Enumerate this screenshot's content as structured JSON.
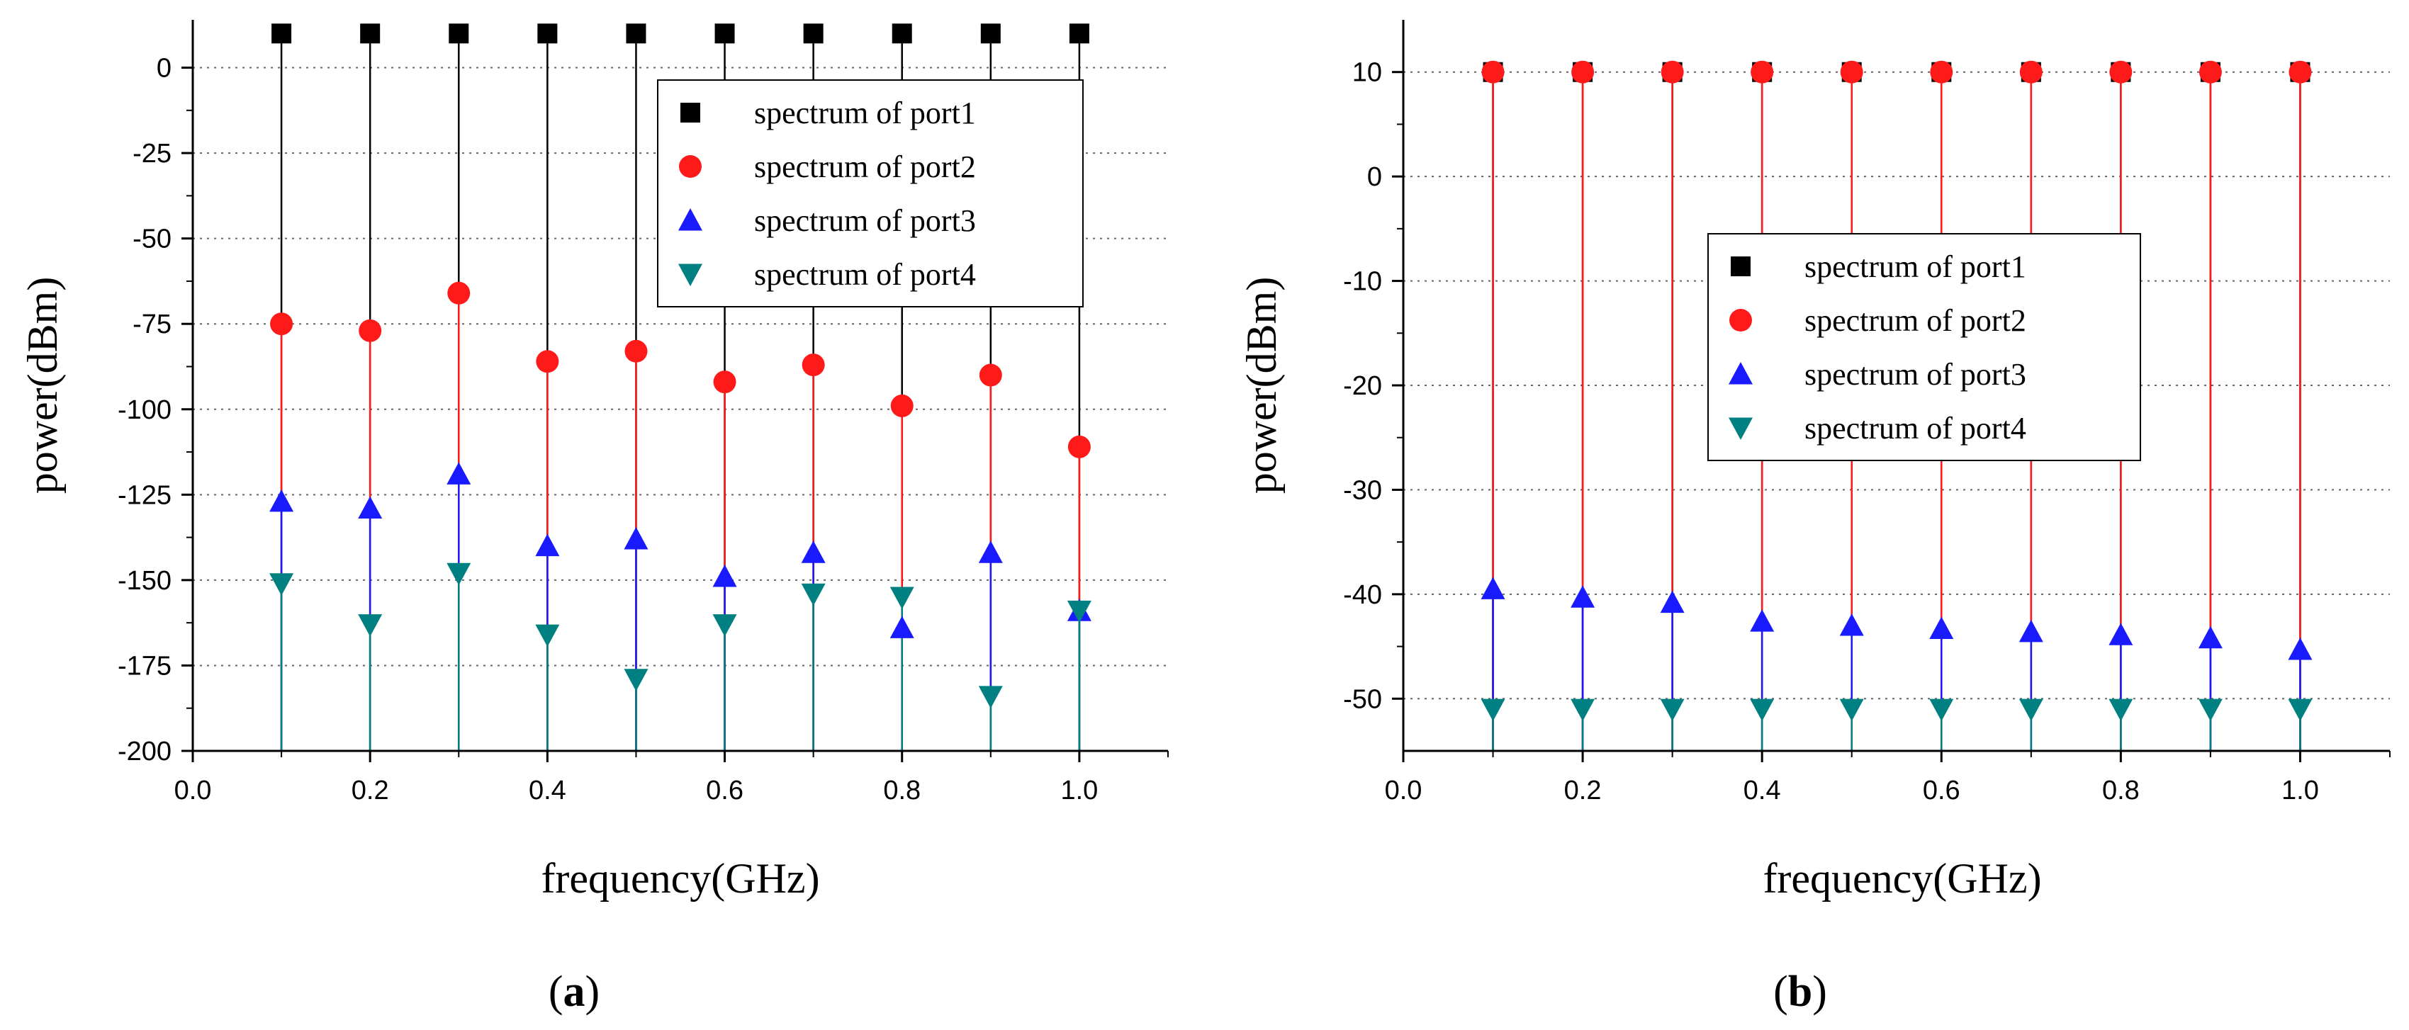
{
  "chart_data": [
    {
      "type": "scatter",
      "style": "stem",
      "caption": "a",
      "xlabel": "frequency(GHz)",
      "ylabel": "power(dBm)",
      "xlim": [
        0.0,
        1.1
      ],
      "ylim": [
        -200,
        14
      ],
      "xticks": [
        0.0,
        0.2,
        0.4,
        0.6,
        0.8,
        1.0
      ],
      "xtick_labels": [
        "0.0",
        "0.2",
        "0.4",
        "0.6",
        "0.8",
        "1.0"
      ],
      "yticks": [
        0,
        -25,
        -50,
        -75,
        -100,
        -125,
        -150,
        -175,
        -200
      ],
      "ytick_labels": [
        "0",
        "-25",
        "-50",
        "-75",
        "-100",
        "-125",
        "-150",
        "-175",
        "-200"
      ],
      "grid": "horizontal dotted",
      "legend_position": "top-right",
      "x": [
        0.1,
        0.2,
        0.3,
        0.4,
        0.5,
        0.6,
        0.7,
        0.8,
        0.9,
        1.0
      ],
      "series": [
        {
          "name": "spectrum of port1",
          "marker": "square",
          "color": "#000000",
          "values": [
            10,
            10,
            10,
            10,
            10,
            10,
            10,
            10,
            10,
            10
          ]
        },
        {
          "name": "spectrum of port2",
          "marker": "circle",
          "color": "#ff1a1a",
          "values": [
            -75,
            -77,
            -66,
            -86,
            -83,
            -92,
            -87,
            -99,
            -90,
            -111
          ]
        },
        {
          "name": "spectrum of port3",
          "marker": "triangle-up",
          "color": "#1a1aff",
          "values": [
            -127,
            -129,
            -119,
            -140,
            -138,
            -149,
            -142,
            -164,
            -142,
            -159
          ]
        },
        {
          "name": "spectrum of port4",
          "marker": "triangle-down",
          "color": "#008080",
          "values": [
            -151,
            -163,
            -148,
            -166,
            -179,
            -163,
            -154,
            -155,
            -184,
            -159
          ]
        }
      ]
    },
    {
      "type": "scatter",
      "style": "stem",
      "caption": "b",
      "xlabel": "frequency(GHz)",
      "ylabel": "power(dBm)",
      "xlim": [
        0.0,
        1.1
      ],
      "ylim": [
        -55,
        15
      ],
      "xticks": [
        0.0,
        0.2,
        0.4,
        0.6,
        0.8,
        1.0
      ],
      "xtick_labels": [
        "0.0",
        "0.2",
        "0.4",
        "0.6",
        "0.8",
        "1.0"
      ],
      "yticks": [
        10,
        0,
        -10,
        -20,
        -30,
        -40,
        -50
      ],
      "ytick_labels": [
        "10",
        "0",
        "-10",
        "-20",
        "-30",
        "-40",
        "-50"
      ],
      "grid": "horizontal dotted",
      "legend_position": "center",
      "x": [
        0.1,
        0.2,
        0.3,
        0.4,
        0.5,
        0.6,
        0.7,
        0.8,
        0.9,
        1.0
      ],
      "series": [
        {
          "name": "spectrum of port1",
          "marker": "square",
          "color": "#000000",
          "values": [
            10,
            10,
            10,
            10,
            10,
            10,
            10,
            10,
            10,
            10
          ]
        },
        {
          "name": "spectrum of port2",
          "marker": "circle",
          "color": "#ff1a1a",
          "values": [
            10,
            10,
            10,
            10,
            10,
            10,
            10,
            10,
            10,
            10
          ]
        },
        {
          "name": "spectrum of port3",
          "marker": "triangle-up",
          "color": "#1a1aff",
          "values": [
            -39.5,
            -40.3,
            -40.8,
            -42.6,
            -43,
            -43.3,
            -43.6,
            -43.9,
            -44.2,
            -45.3
          ]
        },
        {
          "name": "spectrum of port4",
          "marker": "triangle-down",
          "color": "#008080",
          "values": [
            -51,
            -51,
            -51,
            -51,
            -51,
            -51,
            -51,
            -51,
            -51,
            -51
          ]
        }
      ]
    }
  ]
}
